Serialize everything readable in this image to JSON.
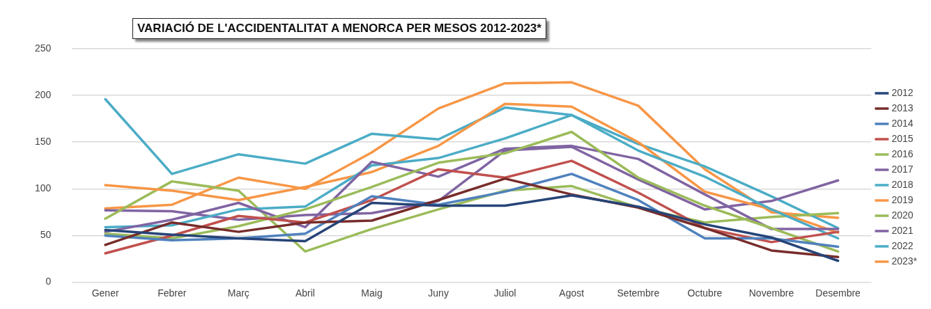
{
  "chart_data": {
    "type": "line",
    "title": "VARIACIÓ DE L'ACCIDENTALITAT A MENORCA PER MESOS 2012-2023*",
    "categories": [
      "Gener",
      "Febrer",
      "Març",
      "Abril",
      "Maig",
      "Juny",
      "Juliol",
      "Agost",
      "Setembre",
      "Octubre",
      "Novembre",
      "Desembre"
    ],
    "series": [
      {
        "name": "2012",
        "color": "#264478",
        "values": [
          56,
          51,
          47,
          44,
          85,
          82,
          82,
          93,
          81,
          62,
          48,
          23
        ]
      },
      {
        "name": "2013",
        "color": "#772c2a",
        "values": [
          40,
          64,
          54,
          64,
          66,
          88,
          111,
          94,
          80,
          58,
          34,
          27
        ]
      },
      {
        "name": "2014",
        "color": "#4f81bd",
        "values": [
          50,
          45,
          47,
          52,
          92,
          83,
          97,
          116,
          88,
          47,
          47,
          38
        ]
      },
      {
        "name": "2015",
        "color": "#c0504d",
        "values": [
          31,
          50,
          71,
          64,
          88,
          121,
          112,
          130,
          96,
          58,
          43,
          54
        ]
      },
      {
        "name": "2016",
        "color": "#9bbb59",
        "values": [
          52,
          47,
          60,
          78,
          102,
          128,
          138,
          161,
          112,
          82,
          58,
          33
        ]
      },
      {
        "name": "2017",
        "color": "#8064a2",
        "values": [
          54,
          67,
          85,
          59,
          129,
          113,
          143,
          146,
          132,
          94,
          57,
          57
        ]
      },
      {
        "name": "2018",
        "color": "#4bacc6",
        "values": [
          59,
          61,
          78,
          81,
          125,
          133,
          154,
          179,
          141,
          113,
          78,
          47
        ]
      },
      {
        "name": "2019",
        "color": "#f79646",
        "values": [
          104,
          98,
          88,
          102,
          118,
          146,
          191,
          188,
          150,
          97,
          78,
          53
        ]
      },
      {
        "name": "2020",
        "color": "#9bbb59",
        "values": [
          68,
          108,
          98,
          33,
          57,
          78,
          98,
          103,
          80,
          64,
          70,
          74
        ]
      },
      {
        "name": "2021",
        "color": "#8064a2",
        "values": [
          77,
          76,
          67,
          72,
          74,
          87,
          141,
          145,
          110,
          78,
          87,
          109
        ]
      },
      {
        "name": "2022",
        "color": "#4bacc6",
        "values": [
          196,
          116,
          137,
          127,
          159,
          153,
          187,
          179,
          148,
          124,
          92,
          58
        ]
      },
      {
        "name": "2023*",
        "color": "#f79646",
        "values": [
          79,
          83,
          112,
          100,
          139,
          186,
          213,
          214,
          189,
          121,
          75,
          69
        ]
      }
    ],
    "ylim": [
      0,
      250
    ],
    "yticks": [
      0,
      50,
      100,
      150,
      200,
      250
    ],
    "grid": "y",
    "legend": "right",
    "marker": "none",
    "line_style": "solid"
  }
}
